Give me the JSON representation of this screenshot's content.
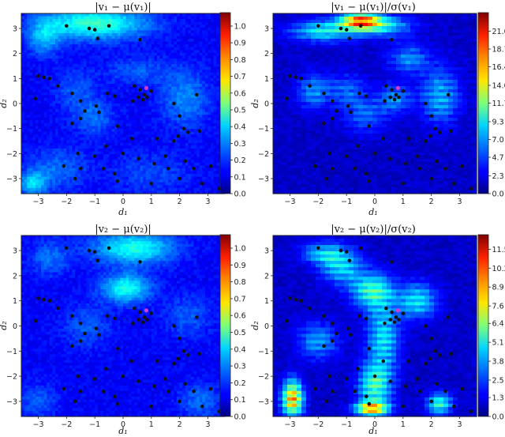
{
  "chart_data": [
    {
      "type": "heatmap",
      "title": "|v₁ − μ(v₁)|",
      "xlabel": "d₁",
      "ylabel": "d₂",
      "xlim": [
        -3.6,
        3.6
      ],
      "ylim": [
        -3.6,
        3.6
      ],
      "xticks": [
        "−3",
        "−2",
        "−1",
        "0",
        "1",
        "2",
        "3"
      ],
      "yticks": [
        "−3",
        "−2",
        "−1",
        "0",
        "1",
        "2",
        "3"
      ],
      "colorbar_ticks": [
        "0.0",
        "0.1",
        "0.2",
        "0.3",
        "0.4",
        "0.5",
        "0.6",
        "0.7",
        "0.8",
        "0.9",
        "1.0"
      ],
      "colorbar_range": [
        0,
        1.08
      ],
      "colormap": "jet",
      "style": "smooth",
      "blobs": [
        {
          "x": -1.0,
          "y": 3.2,
          "sx": 1.3,
          "sy": 0.45,
          "v": 0.34
        },
        {
          "x": -2.8,
          "y": 2.6,
          "sx": 0.4,
          "sy": 0.5,
          "v": 0.18
        },
        {
          "x": -3.2,
          "y": -3.2,
          "sx": 0.35,
          "sy": 0.35,
          "v": 0.22
        },
        {
          "x": -2.3,
          "y": -2.6,
          "sx": 0.7,
          "sy": 0.6,
          "v": 0.12
        },
        {
          "x": 2.2,
          "y": 0.2,
          "sx": 0.6,
          "sy": 0.8,
          "v": 0.15
        },
        {
          "x": -1.0,
          "y": -0.6,
          "sx": 0.5,
          "sy": 0.5,
          "v": 0.12
        },
        {
          "x": -1.7,
          "y": 0.5,
          "sx": 0.5,
          "sy": 0.6,
          "v": 0.1
        },
        {
          "x": 0.5,
          "y": 1.3,
          "sx": 0.8,
          "sy": 0.4,
          "v": 0.1
        },
        {
          "x": 1.0,
          "y": -2.8,
          "sx": 1.0,
          "sy": 0.6,
          "v": 0.08
        }
      ]
    },
    {
      "type": "heatmap",
      "title": "|v₁ − μ(v₁)|/σ(v₁)",
      "xlabel": "d₁",
      "ylabel": "d₂",
      "xlim": [
        -3.6,
        3.6
      ],
      "ylim": [
        -3.6,
        3.6
      ],
      "xticks": [
        "−3",
        "−2",
        "−1",
        "0",
        "1",
        "2",
        "3"
      ],
      "yticks": [
        "−3",
        "−2",
        "−1",
        "0",
        "1",
        "2",
        "3"
      ],
      "colorbar_ticks": [
        "0.0",
        "2.3",
        "4.7",
        "7.0",
        "9.3",
        "11.7",
        "14.0",
        "16.4",
        "18.7",
        "21.0"
      ],
      "colorbar_range": [
        0,
        23.4
      ],
      "colormap": "jet",
      "style": "banded",
      "blobs": [
        {
          "x": -0.5,
          "y": 3.3,
          "sx": 0.5,
          "sy": 0.25,
          "v": 17
        },
        {
          "x": -1.8,
          "y": 2.9,
          "sx": 0.8,
          "sy": 0.3,
          "v": 8
        },
        {
          "x": 0.3,
          "y": 3.1,
          "sx": 0.7,
          "sy": 0.3,
          "v": 7
        },
        {
          "x": 2.3,
          "y": 0.3,
          "sx": 0.5,
          "sy": 0.8,
          "v": 6
        },
        {
          "x": 1.2,
          "y": 1.8,
          "sx": 0.5,
          "sy": 0.4,
          "v": 5
        },
        {
          "x": -2.2,
          "y": 0.5,
          "sx": 0.4,
          "sy": 0.5,
          "v": 5
        },
        {
          "x": -1.0,
          "y": 0.5,
          "sx": 0.5,
          "sy": 0.5,
          "v": 4
        },
        {
          "x": -0.3,
          "y": -0.5,
          "sx": 0.5,
          "sy": 0.5,
          "v": 4
        },
        {
          "x": 0.7,
          "y": 0.2,
          "sx": 0.4,
          "sy": 0.4,
          "v": 5
        }
      ]
    },
    {
      "type": "heatmap",
      "title": "|v₂ − μ(v₂)|",
      "xlabel": "d₁",
      "ylabel": "d₂",
      "xlim": [
        -3.6,
        3.6
      ],
      "ylim": [
        -3.6,
        3.6
      ],
      "xticks": [
        "−3",
        "−2",
        "−1",
        "0",
        "1",
        "2",
        "3"
      ],
      "yticks": [
        "−3",
        "−2",
        "−1",
        "0",
        "1",
        "2",
        "3"
      ],
      "colorbar_ticks": [
        "0.0",
        "0.1",
        "0.2",
        "0.3",
        "0.4",
        "0.5",
        "0.6",
        "0.7",
        "0.8",
        "0.9",
        "1.0"
      ],
      "colorbar_range": [
        0,
        1.08
      ],
      "colormap": "jet",
      "style": "smooth",
      "blobs": [
        {
          "x": 0.4,
          "y": 3.1,
          "sx": 1.0,
          "sy": 0.45,
          "v": 0.3
        },
        {
          "x": 0.1,
          "y": 1.5,
          "sx": 0.6,
          "sy": 0.4,
          "v": 0.3
        },
        {
          "x": -2.6,
          "y": 2.7,
          "sx": 0.5,
          "sy": 0.5,
          "v": 0.12
        },
        {
          "x": -1.3,
          "y": 0.0,
          "sx": 0.6,
          "sy": 0.6,
          "v": 0.1
        },
        {
          "x": 2.3,
          "y": 0.4,
          "sx": 0.6,
          "sy": 0.6,
          "v": 0.1
        },
        {
          "x": 2.7,
          "y": -3.0,
          "sx": 0.5,
          "sy": 0.5,
          "v": 0.12
        },
        {
          "x": -3.0,
          "y": -3.0,
          "sx": 0.5,
          "sy": 0.5,
          "v": 0.1
        }
      ]
    },
    {
      "type": "heatmap",
      "title": "|v₂ − μ(v₂)|/σ(v₂)",
      "xlabel": "d₁",
      "ylabel": "d₂",
      "xlim": [
        -3.6,
        3.6
      ],
      "ylim": [
        -3.6,
        3.6
      ],
      "xticks": [
        "−3",
        "−2",
        "−1",
        "0",
        "1",
        "2",
        "3"
      ],
      "yticks": [
        "−3",
        "−2",
        "−1",
        "0",
        "1",
        "2",
        "3"
      ],
      "colorbar_ticks": [
        "0.0",
        "1.3",
        "2.5",
        "3.8",
        "5.1",
        "6.4",
        "7.6",
        "8.9",
        "10.2",
        "11.5"
      ],
      "colorbar_range": [
        0,
        12.5
      ],
      "colormap": "jet",
      "style": "banded",
      "blobs": [
        {
          "x": -2.9,
          "y": -2.9,
          "sx": 0.25,
          "sy": 0.5,
          "v": 9
        },
        {
          "x": -0.1,
          "y": -3.3,
          "sx": 0.4,
          "sy": 0.2,
          "v": 8
        },
        {
          "x": 0.0,
          "y": -2.4,
          "sx": 0.4,
          "sy": 0.6,
          "v": 5
        },
        {
          "x": 2.3,
          "y": -3.1,
          "sx": 0.3,
          "sy": 0.3,
          "v": 5
        },
        {
          "x": -0.1,
          "y": 1.4,
          "sx": 0.5,
          "sy": 0.5,
          "v": 5
        },
        {
          "x": 0.3,
          "y": -0.5,
          "sx": 0.4,
          "sy": 1.0,
          "v": 4
        },
        {
          "x": 1.5,
          "y": 1.0,
          "sx": 0.5,
          "sy": 0.5,
          "v": 4
        },
        {
          "x": -1.2,
          "y": 2.4,
          "sx": 0.5,
          "sy": 0.5,
          "v": 4
        },
        {
          "x": -2.0,
          "y": -0.6,
          "sx": 0.5,
          "sy": 0.5,
          "v": 3
        },
        {
          "x": -1.9,
          "y": 2.9,
          "sx": 0.5,
          "sy": 0.3,
          "v": 3
        }
      ]
    }
  ],
  "sample_points": [
    [
      -2.0,
      3.1
    ],
    [
      -1.2,
      3.0
    ],
    [
      -1.0,
      2.95
    ],
    [
      -0.5,
      3.1
    ],
    [
      -0.9,
      2.6
    ],
    [
      0.6,
      2.55
    ],
    [
      -3.0,
      1.1
    ],
    [
      -2.8,
      1.05
    ],
    [
      -2.6,
      1.0
    ],
    [
      -2.3,
      0.7
    ],
    [
      -3.1,
      0.2
    ],
    [
      -1.8,
      0.4
    ],
    [
      -1.5,
      0.1
    ],
    [
      -0.95,
      -0.1
    ],
    [
      -0.85,
      -0.35
    ],
    [
      -1.35,
      -0.3
    ],
    [
      -1.8,
      -0.8
    ],
    [
      -1.5,
      -0.6
    ],
    [
      -0.55,
      0.4
    ],
    [
      -0.3,
      0.3
    ],
    [
      0.4,
      0.7
    ],
    [
      0.6,
      0.55
    ],
    [
      0.75,
      0.35
    ],
    [
      0.55,
      0.25
    ],
    [
      0.35,
      0.1
    ],
    [
      0.85,
      0.25
    ],
    [
      0.7,
      0.15
    ],
    [
      1.0,
      0.5
    ],
    [
      1.8,
      0.0
    ],
    [
      2.6,
      0.35
    ],
    [
      2.0,
      -0.5
    ],
    [
      -0.2,
      -0.9
    ],
    [
      -0.6,
      -1.7
    ],
    [
      0.3,
      -1.4
    ],
    [
      1.2,
      -1.4
    ],
    [
      1.8,
      -1.5
    ],
    [
      1.95,
      -1.3
    ],
    [
      2.15,
      -1.0
    ],
    [
      2.3,
      -1.15
    ],
    [
      2.7,
      -1.1
    ],
    [
      -1.6,
      -2.0
    ],
    [
      -1.0,
      -2.1
    ],
    [
      0.0,
      -2.0
    ],
    [
      0.55,
      -2.2
    ],
    [
      1.5,
      -2.1
    ],
    [
      2.2,
      -2.3
    ],
    [
      -2.1,
      -2.5
    ],
    [
      -1.5,
      -2.6
    ],
    [
      -0.7,
      -2.6
    ],
    [
      -0.3,
      -2.8
    ],
    [
      1.1,
      -2.4
    ],
    [
      1.6,
      -2.6
    ],
    [
      2.5,
      -2.6
    ],
    [
      3.1,
      -2.5
    ],
    [
      -1.7,
      -3.0
    ],
    [
      -0.2,
      -3.1
    ],
    [
      1.0,
      -3.2
    ],
    [
      2.0,
      -3.0
    ],
    [
      2.8,
      -3.2
    ],
    [
      3.4,
      -3.4
    ]
  ],
  "highlight_point": [
    0.82,
    0.62
  ],
  "colors": {
    "point": "#111111",
    "highlight": "#d43ad0",
    "axes": "#222222"
  }
}
